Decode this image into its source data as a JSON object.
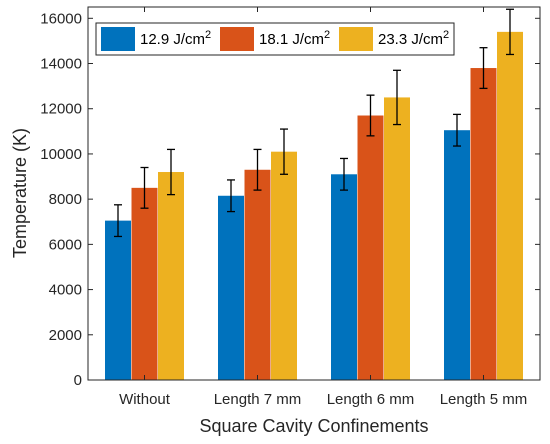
{
  "chart_data": {
    "type": "bar",
    "xlabel": "Square Cavity Confinements",
    "ylabel": "Temperature (K)",
    "categories": [
      "Without",
      "Length 7 mm",
      "Length 6 mm",
      "Length 5 mm"
    ],
    "ylim": [
      0,
      16500
    ],
    "yticks": [
      0,
      2000,
      4000,
      6000,
      8000,
      10000,
      12000,
      14000,
      16000
    ],
    "legend_position": "top-left",
    "legend_unit": "J/cm",
    "legend_superscript": "2",
    "series": [
      {
        "name": "12.9",
        "color": "#0072BD",
        "values": [
          7050,
          8150,
          9100,
          11050
        ],
        "errors": [
          700,
          700,
          700,
          700
        ]
      },
      {
        "name": "18.1",
        "color": "#D95319",
        "values": [
          8500,
          9300,
          11700,
          13800
        ],
        "errors": [
          900,
          900,
          900,
          900
        ]
      },
      {
        "name": "23.3",
        "color": "#EDB120",
        "values": [
          9200,
          10100,
          12500,
          15400
        ],
        "errors": [
          1000,
          1000,
          1200,
          1000
        ]
      }
    ]
  }
}
